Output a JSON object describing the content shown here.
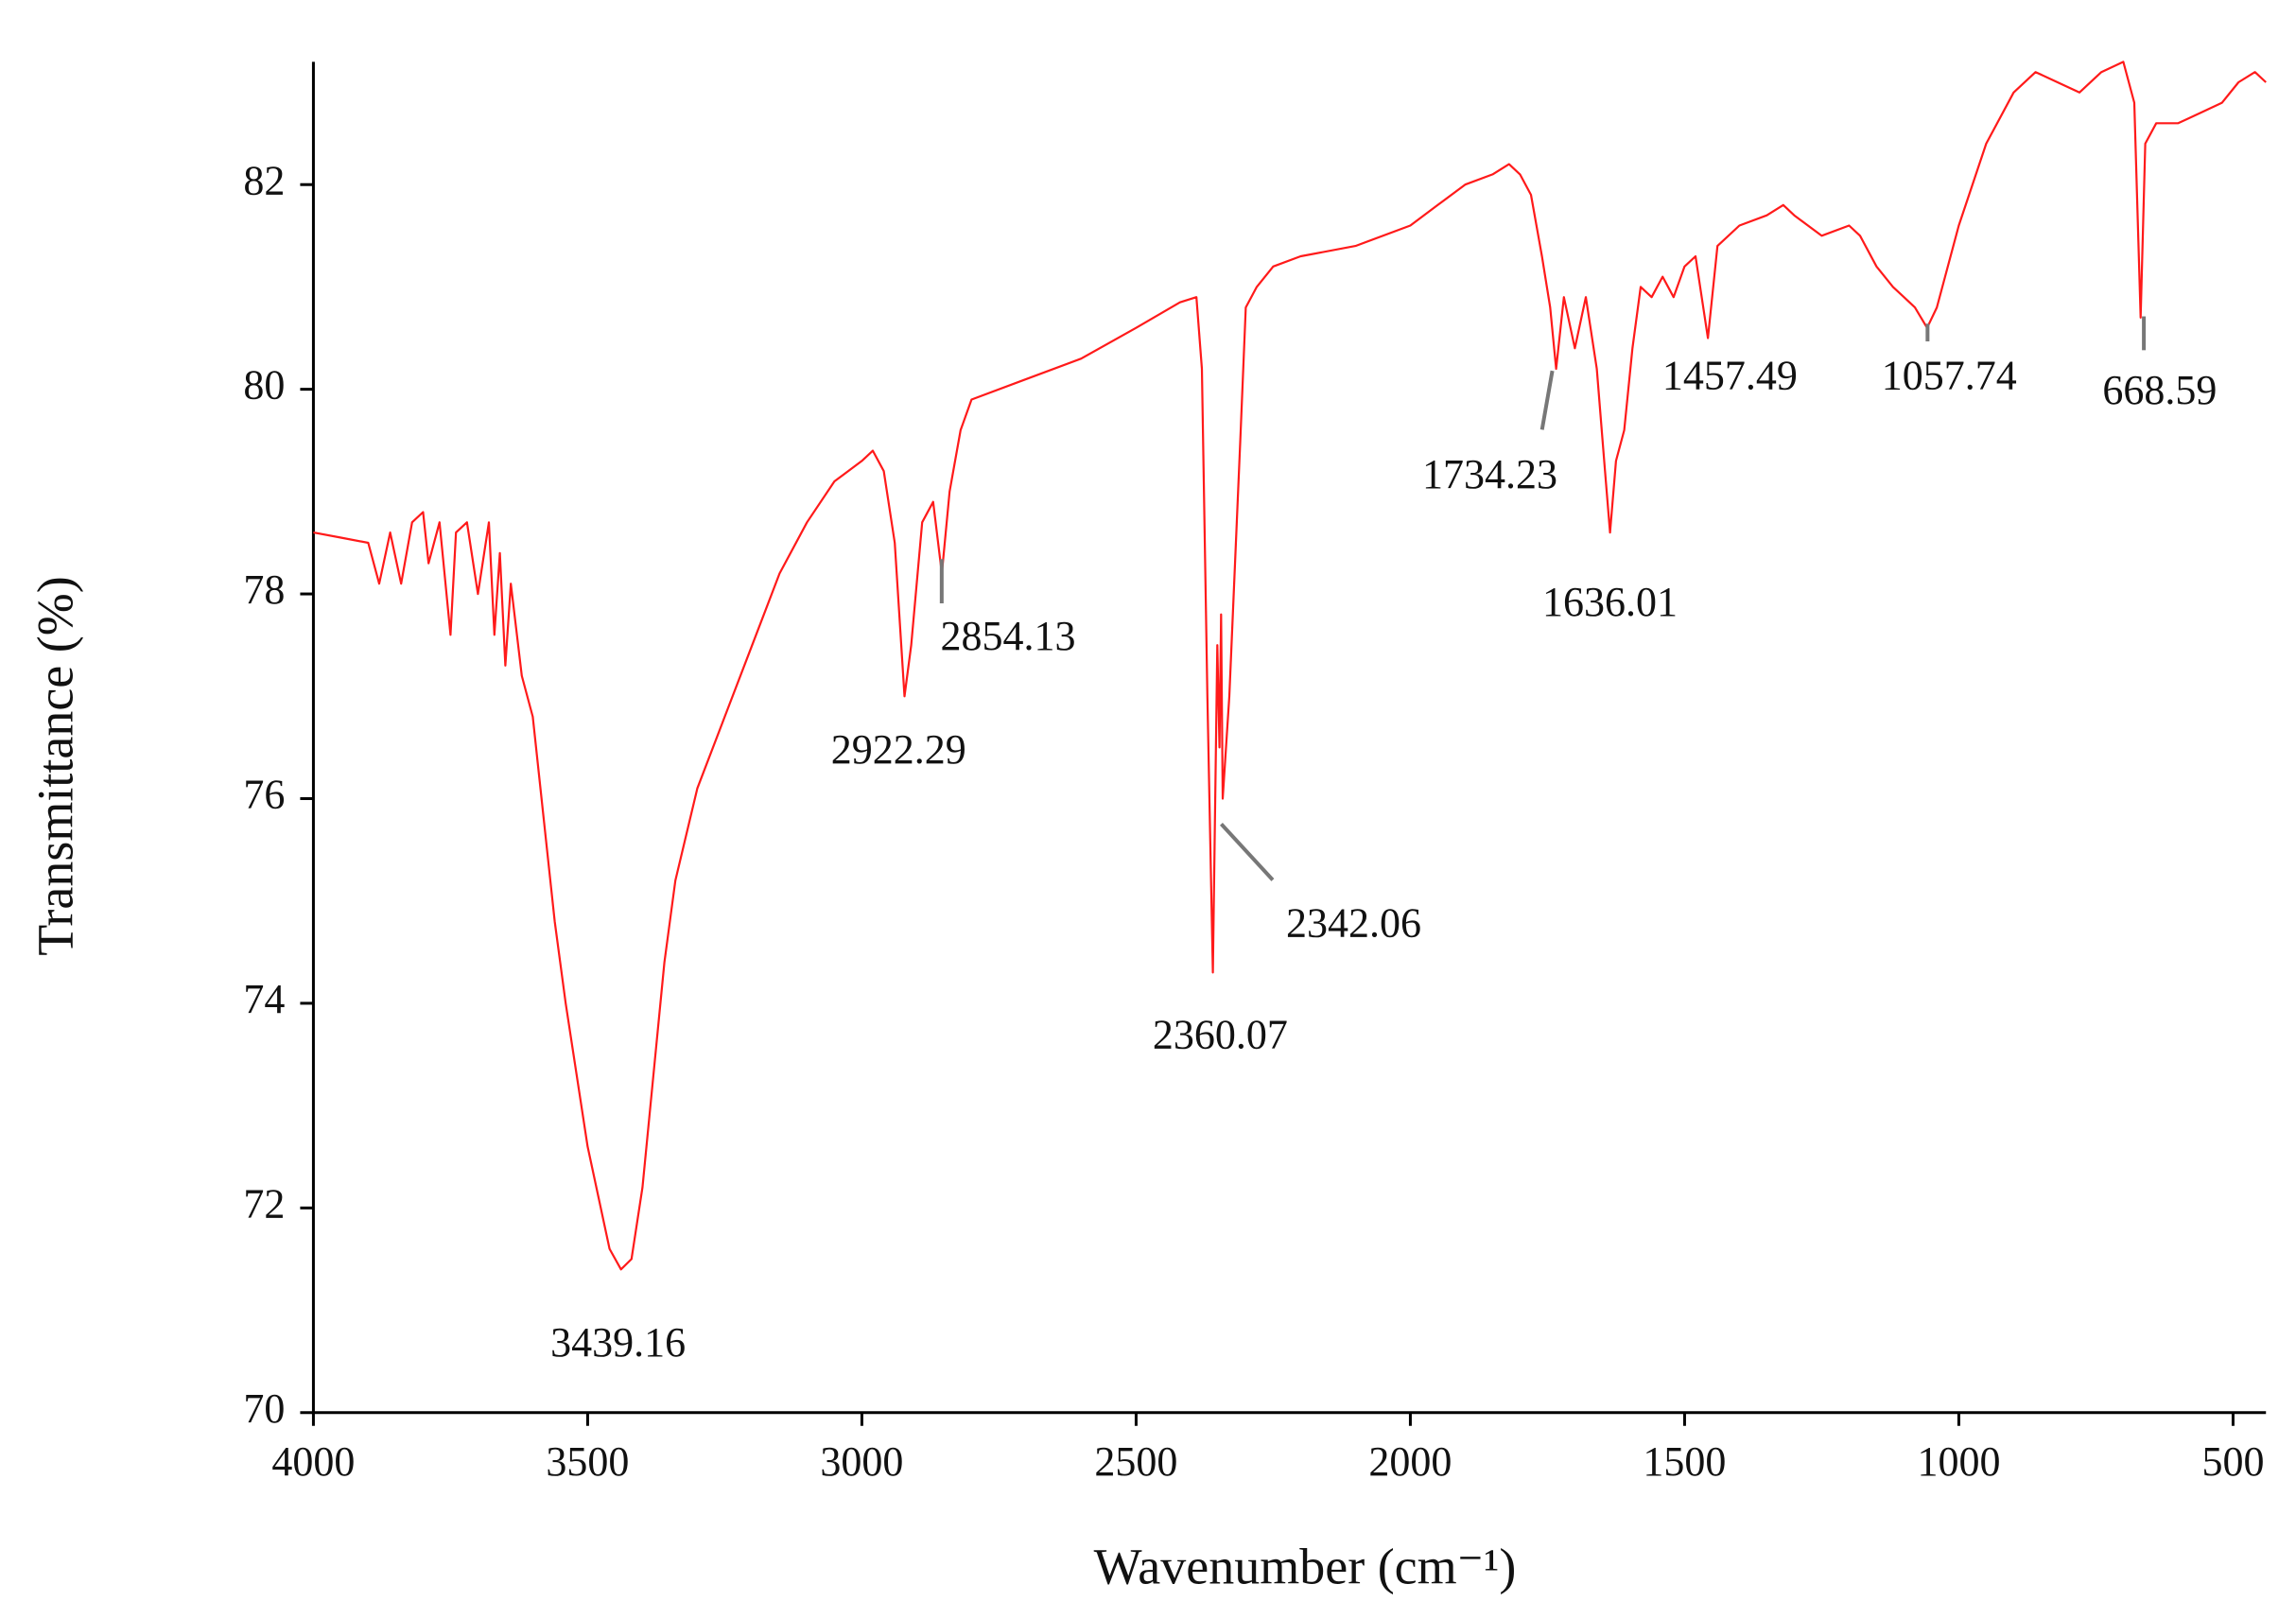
{
  "chart_data": {
    "type": "line",
    "x_label": "Wavenumber (cm⁻¹)",
    "y_label": "Transmittance (%)",
    "color": "#ff1a1a",
    "xlim": [
      4000,
      440
    ],
    "ylim": [
      70,
      83.2
    ],
    "xticks": [
      4000,
      3500,
      3000,
      2500,
      2000,
      1500,
      1000,
      500
    ],
    "yticks": [
      70,
      72,
      74,
      76,
      78,
      80,
      82
    ],
    "x": [
      4000,
      3950,
      3900,
      3880,
      3860,
      3840,
      3820,
      3800,
      3790,
      3770,
      3750,
      3740,
      3720,
      3700,
      3680,
      3670,
      3660,
      3650,
      3640,
      3620,
      3600,
      3580,
      3560,
      3540,
      3520,
      3500,
      3480,
      3460,
      3439.16,
      3420,
      3400,
      3380,
      3360,
      3340,
      3300,
      3250,
      3200,
      3150,
      3100,
      3050,
      3000,
      2980,
      2960,
      2940,
      2922.29,
      2910,
      2890,
      2870,
      2854.13,
      2840,
      2820,
      2800,
      2700,
      2600,
      2500,
      2420,
      2390,
      2380,
      2370,
      2360.07,
      2352,
      2348,
      2345,
      2342.06,
      2330,
      2310,
      2300,
      2280,
      2250,
      2200,
      2100,
      2000,
      1950,
      1900,
      1850,
      1820,
      1800,
      1780,
      1760,
      1745,
      1734.23,
      1720,
      1700,
      1680,
      1660,
      1645,
      1636.01,
      1625,
      1610,
      1595,
      1580,
      1560,
      1540,
      1520,
      1500,
      1480,
      1457.49,
      1440,
      1400,
      1350,
      1320,
      1300,
      1250,
      1200,
      1180,
      1150,
      1120,
      1100,
      1080,
      1057.74,
      1040,
      1000,
      950,
      900,
      860,
      820,
      780,
      740,
      700,
      690,
      680,
      668.59,
      660,
      640,
      600,
      560,
      520,
      490,
      460,
      440
    ],
    "values": [
      78.6,
      78.55,
      78.5,
      78.1,
      78.6,
      78.1,
      78.7,
      78.8,
      78.3,
      78.7,
      77.6,
      78.6,
      78.7,
      78.0,
      78.7,
      77.6,
      78.4,
      77.3,
      78.1,
      77.2,
      76.8,
      75.8,
      74.8,
      74.0,
      73.3,
      72.6,
      72.1,
      71.6,
      71.4,
      71.5,
      72.2,
      73.3,
      74.4,
      75.2,
      76.1,
      76.8,
      77.5,
      78.2,
      78.7,
      79.1,
      79.3,
      79.4,
      79.2,
      78.5,
      77.0,
      77.5,
      78.7,
      78.9,
      78.2,
      79.0,
      79.6,
      79.9,
      80.1,
      80.3,
      80.6,
      80.85,
      80.9,
      80.2,
      77.0,
      74.3,
      77.5,
      76.5,
      77.8,
      76.0,
      77.0,
      79.5,
      80.8,
      81.0,
      81.2,
      81.3,
      81.4,
      81.6,
      81.8,
      82.0,
      82.1,
      82.2,
      82.1,
      81.9,
      81.3,
      80.8,
      80.2,
      80.9,
      80.4,
      80.9,
      80.2,
      79.2,
      78.6,
      79.3,
      79.6,
      80.4,
      81.0,
      80.9,
      81.1,
      80.9,
      81.2,
      81.3,
      80.5,
      81.4,
      81.6,
      81.7,
      81.8,
      81.7,
      81.5,
      81.6,
      81.5,
      81.2,
      81.0,
      80.9,
      80.8,
      80.6,
      80.8,
      81.6,
      82.4,
      82.9,
      83.1,
      83.0,
      82.9,
      83.1,
      83.2,
      83.0,
      82.8,
      80.7,
      82.4,
      82.6,
      82.6,
      82.7,
      82.8,
      83.0,
      83.1,
      83.0
    ],
    "annotations": [
      {
        "label": "3439.16",
        "x": 3439.16
      },
      {
        "label": "2922.29",
        "x": 2922.29
      },
      {
        "label": "2854.13",
        "x": 2854.13
      },
      {
        "label": "2360.07",
        "x": 2360.07
      },
      {
        "label": "2342.06",
        "x": 2342.06
      },
      {
        "label": "1734.23",
        "x": 1734.23
      },
      {
        "label": "1636.01",
        "x": 1636.01
      },
      {
        "label": "1457.49",
        "x": 1457.49
      },
      {
        "label": "1057.74",
        "x": 1057.74
      },
      {
        "label": "668.59",
        "x": 668.59
      }
    ]
  }
}
